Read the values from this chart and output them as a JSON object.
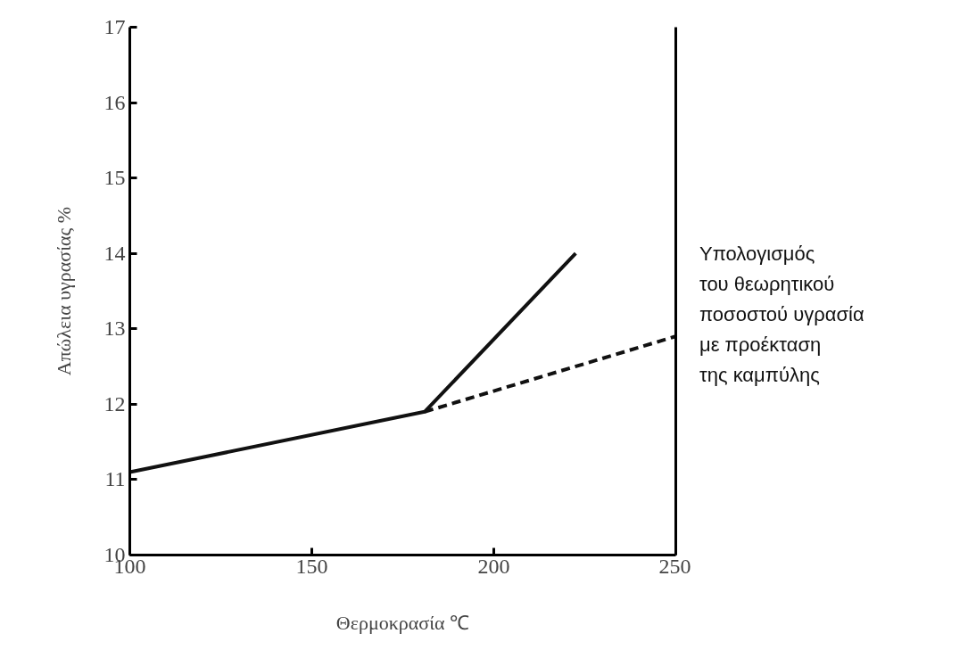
{
  "chart_data": {
    "type": "line",
    "xlabel": "Θερμοκρασία ℃",
    "ylabel": "Απώλεια υγρασίας %",
    "x": [
      100,
      181,
      222.5
    ],
    "series": [
      {
        "color": "#111111",
        "values": [
          11.1,
          11.9,
          14.0
        ],
        "line_style": "solid"
      },
      {
        "color": "#111111",
        "x": [
          181,
          250
        ],
        "values": [
          11.9,
          12.9
        ],
        "line_style": "dashed"
      }
    ],
    "xlim": [
      100,
      250
    ],
    "ylim": [
      10,
      17
    ],
    "xticks": [
      100,
      150,
      200,
      250
    ],
    "yticks": [
      10,
      11,
      12,
      13,
      14,
      15,
      16,
      17
    ],
    "grid": false,
    "marker": "none",
    "annotations": [
      "Υπολογισμός\nτου θεωρητικού\nποσοστού υγρασία\nμε προέκταση\nτης καμπύλης"
    ]
  }
}
